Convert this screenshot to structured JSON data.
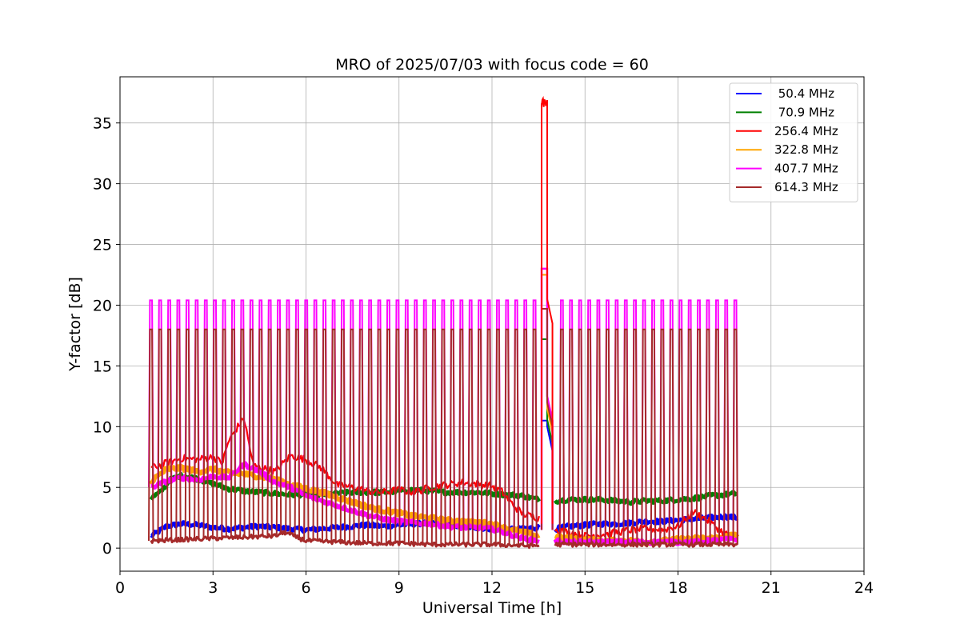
{
  "chart_data": {
    "type": "line",
    "title": "MRO of 2025/07/03 with focus code = 60",
    "xlabel": "Universal Time [h]",
    "ylabel": "Y-factor [dB]",
    "xlim": [
      0,
      24
    ],
    "ylim": [
      -1.9,
      38.8
    ],
    "xticks": [
      0,
      3,
      6,
      9,
      12,
      15,
      18,
      21,
      24
    ],
    "yticks": [
      0,
      5,
      10,
      15,
      20,
      25,
      30,
      35
    ],
    "grid": true,
    "legend_position": "top-right",
    "spikes": {
      "start": 1.0,
      "end": 19.85,
      "count": 65,
      "peak": 18.0,
      "pink_peak": 20.4
    },
    "gap": [
      13.55,
      14.0
    ],
    "series": [
      {
        "name": " 50.4 MHz",
        "color": "#0000ff",
        "points": [
          [
            1.0,
            1.0
          ],
          [
            1.2,
            1.3
          ],
          [
            1.5,
            1.8
          ],
          [
            2.0,
            2.0
          ],
          [
            2.5,
            1.9
          ],
          [
            3.0,
            1.7
          ],
          [
            3.5,
            1.6
          ],
          [
            4.0,
            1.7
          ],
          [
            4.5,
            1.8
          ],
          [
            5.0,
            1.7
          ],
          [
            5.5,
            1.6
          ],
          [
            6.0,
            1.5
          ],
          [
            6.5,
            1.6
          ],
          [
            7.0,
            1.7
          ],
          [
            7.5,
            1.8
          ],
          [
            8.0,
            1.9
          ],
          [
            8.5,
            1.8
          ],
          [
            9.0,
            1.9
          ],
          [
            9.5,
            2.0
          ],
          [
            10.0,
            2.1
          ],
          [
            10.5,
            2.0
          ],
          [
            11.0,
            1.8
          ],
          [
            11.5,
            1.7
          ],
          [
            12.0,
            1.6
          ],
          [
            12.5,
            1.5
          ],
          [
            13.0,
            1.6
          ],
          [
            13.5,
            1.7
          ],
          [
            14.1,
            1.6
          ],
          [
            14.5,
            1.8
          ],
          [
            15.0,
            1.9
          ],
          [
            15.5,
            2.0
          ],
          [
            16.0,
            2.0
          ],
          [
            16.5,
            2.1
          ],
          [
            17.0,
            2.2
          ],
          [
            17.5,
            2.2
          ],
          [
            18.0,
            2.3
          ],
          [
            18.5,
            2.4
          ],
          [
            19.0,
            2.5
          ],
          [
            19.5,
            2.6
          ],
          [
            19.95,
            2.5
          ]
        ]
      },
      {
        "name": " 70.9 MHz",
        "color": "#008000",
        "points": [
          [
            1.0,
            4.1
          ],
          [
            1.3,
            4.6
          ],
          [
            1.6,
            5.6
          ],
          [
            2.0,
            6.0
          ],
          [
            2.5,
            5.7
          ],
          [
            3.0,
            5.3
          ],
          [
            3.5,
            4.9
          ],
          [
            4.0,
            4.7
          ],
          [
            4.5,
            4.6
          ],
          [
            5.0,
            4.5
          ],
          [
            5.5,
            4.4
          ],
          [
            6.0,
            4.4
          ],
          [
            6.5,
            4.4
          ],
          [
            7.0,
            4.5
          ],
          [
            7.5,
            4.6
          ],
          [
            8.0,
            4.6
          ],
          [
            8.5,
            4.6
          ],
          [
            9.0,
            4.7
          ],
          [
            9.5,
            4.8
          ],
          [
            10.0,
            4.7
          ],
          [
            10.5,
            4.6
          ],
          [
            11.0,
            4.6
          ],
          [
            11.5,
            4.6
          ],
          [
            12.0,
            4.5
          ],
          [
            12.5,
            4.4
          ],
          [
            13.0,
            4.3
          ],
          [
            13.5,
            4.0
          ],
          [
            14.1,
            3.9
          ],
          [
            14.5,
            4.0
          ],
          [
            15.0,
            4.0
          ],
          [
            15.5,
            4.0
          ],
          [
            16.0,
            3.9
          ],
          [
            16.5,
            3.8
          ],
          [
            17.0,
            3.9
          ],
          [
            17.5,
            3.9
          ],
          [
            18.0,
            4.0
          ],
          [
            18.5,
            4.1
          ],
          [
            19.0,
            4.3
          ],
          [
            19.5,
            4.4
          ],
          [
            19.95,
            4.5
          ]
        ]
      },
      {
        "name": "256.4 MHz",
        "color": "#ff0000",
        "points": [
          [
            1.0,
            6.6
          ],
          [
            1.5,
            7.0
          ],
          [
            2.0,
            7.4
          ],
          [
            2.5,
            7.3
          ],
          [
            3.0,
            7.5
          ],
          [
            3.3,
            7.0
          ],
          [
            3.5,
            8.8
          ],
          [
            3.8,
            10.0
          ],
          [
            4.0,
            10.7
          ],
          [
            4.3,
            6.8
          ],
          [
            5.0,
            6.3
          ],
          [
            5.5,
            7.6
          ],
          [
            6.0,
            7.3
          ],
          [
            6.5,
            6.6
          ],
          [
            7.0,
            5.2
          ],
          [
            7.5,
            5.0
          ],
          [
            8.0,
            4.7
          ],
          [
            8.5,
            4.6
          ],
          [
            9.0,
            4.8
          ],
          [
            9.5,
            4.6
          ],
          [
            10.0,
            5.0
          ],
          [
            10.5,
            5.2
          ],
          [
            11.0,
            5.4
          ],
          [
            11.5,
            5.3
          ],
          [
            12.0,
            5.1
          ],
          [
            12.3,
            4.7
          ],
          [
            12.7,
            3.5
          ],
          [
            13.0,
            2.8
          ],
          [
            13.5,
            2.5
          ],
          [
            14.1,
            1.5
          ],
          [
            14.5,
            1.3
          ],
          [
            15.0,
            1.0
          ],
          [
            15.5,
            1.1
          ],
          [
            16.0,
            1.3
          ],
          [
            16.5,
            1.5
          ],
          [
            17.0,
            1.6
          ],
          [
            17.5,
            1.5
          ],
          [
            18.0,
            1.8
          ],
          [
            18.5,
            3.0
          ],
          [
            19.0,
            2.2
          ],
          [
            19.5,
            1.2
          ],
          [
            19.95,
            0.9
          ]
        ]
      },
      {
        "name": "322.8 MHz",
        "color": "#ffa500",
        "points": [
          [
            1.0,
            5.5
          ],
          [
            1.5,
            6.5
          ],
          [
            2.0,
            6.6
          ],
          [
            2.5,
            6.3
          ],
          [
            3.0,
            6.5
          ],
          [
            3.5,
            6.2
          ],
          [
            4.0,
            6.1
          ],
          [
            4.5,
            5.9
          ],
          [
            5.0,
            5.7
          ],
          [
            5.5,
            5.2
          ],
          [
            6.0,
            4.9
          ],
          [
            6.5,
            4.6
          ],
          [
            7.0,
            4.2
          ],
          [
            7.5,
            3.8
          ],
          [
            8.0,
            3.4
          ],
          [
            8.5,
            3.1
          ],
          [
            9.0,
            2.9
          ],
          [
            9.5,
            2.6
          ],
          [
            10.0,
            2.5
          ],
          [
            10.5,
            2.3
          ],
          [
            11.0,
            2.2
          ],
          [
            11.5,
            2.1
          ],
          [
            12.0,
            2.0
          ],
          [
            12.5,
            1.6
          ],
          [
            13.0,
            1.3
          ],
          [
            13.5,
            1.0
          ],
          [
            14.1,
            0.9
          ],
          [
            14.5,
            0.8
          ],
          [
            15.0,
            0.7
          ],
          [
            15.5,
            0.6
          ],
          [
            16.0,
            0.6
          ],
          [
            16.5,
            0.6
          ],
          [
            17.0,
            0.5
          ],
          [
            17.5,
            0.6
          ],
          [
            18.0,
            0.7
          ],
          [
            18.5,
            0.8
          ],
          [
            19.0,
            0.8
          ],
          [
            19.5,
            0.9
          ],
          [
            19.95,
            1.2
          ]
        ]
      },
      {
        "name": "407.7 MHz",
        "color": "#ff00ff",
        "points": [
          [
            1.0,
            5.0
          ],
          [
            1.5,
            5.5
          ],
          [
            2.0,
            5.8
          ],
          [
            2.5,
            5.6
          ],
          [
            3.0,
            5.9
          ],
          [
            3.5,
            5.8
          ],
          [
            4.0,
            6.9
          ],
          [
            4.5,
            6.3
          ],
          [
            5.0,
            5.4
          ],
          [
            5.5,
            5.0
          ],
          [
            6.0,
            4.3
          ],
          [
            6.5,
            3.9
          ],
          [
            7.0,
            3.5
          ],
          [
            7.5,
            3.1
          ],
          [
            8.0,
            2.7
          ],
          [
            8.5,
            2.4
          ],
          [
            9.0,
            2.2
          ],
          [
            9.5,
            2.1
          ],
          [
            10.0,
            2.0
          ],
          [
            10.5,
            1.8
          ],
          [
            11.0,
            1.7
          ],
          [
            11.5,
            1.7
          ],
          [
            12.0,
            1.6
          ],
          [
            12.5,
            1.2
          ],
          [
            13.0,
            0.8
          ],
          [
            13.5,
            0.6
          ],
          [
            14.1,
            0.6
          ],
          [
            14.5,
            0.5
          ],
          [
            15.0,
            0.5
          ],
          [
            15.5,
            0.5
          ],
          [
            16.0,
            0.5
          ],
          [
            16.5,
            0.5
          ],
          [
            17.0,
            0.5
          ],
          [
            17.5,
            0.5
          ],
          [
            18.0,
            0.5
          ],
          [
            18.5,
            0.5
          ],
          [
            19.0,
            0.6
          ],
          [
            19.5,
            0.7
          ],
          [
            19.95,
            0.7
          ]
        ]
      },
      {
        "name": "614.3 MHz",
        "color": "#a52a2a",
        "points": [
          [
            1.0,
            0.6
          ],
          [
            2.0,
            0.7
          ],
          [
            3.0,
            0.8
          ],
          [
            4.0,
            0.9
          ],
          [
            5.0,
            1.0
          ],
          [
            5.3,
            1.3
          ],
          [
            6.0,
            0.6
          ],
          [
            7.0,
            0.5
          ],
          [
            8.0,
            0.4
          ],
          [
            9.0,
            0.4
          ],
          [
            10.0,
            0.3
          ],
          [
            11.0,
            0.3
          ],
          [
            12.0,
            0.3
          ],
          [
            13.0,
            0.2
          ],
          [
            13.5,
            0.2
          ],
          [
            14.1,
            0.3
          ],
          [
            15.0,
            0.3
          ],
          [
            16.0,
            0.3
          ],
          [
            17.0,
            0.3
          ],
          [
            18.0,
            0.3
          ],
          [
            19.0,
            0.3
          ],
          [
            19.95,
            0.3
          ]
        ]
      }
    ],
    "gap_peaks": {
      "256.4 MHz": 36.6,
      "407.7 MHz": 23.0,
      "322.8 MHz": 22.5,
      "614.3 MHz": 19.7,
      "70.9 MHz": 17.2,
      "407.7 MHz_drop": 12.5,
      "256.4 MHz_drop": 11.3,
      "70.9 MHz_drop": 10.6,
      "50.4 MHz_drop": 10.0
    }
  }
}
